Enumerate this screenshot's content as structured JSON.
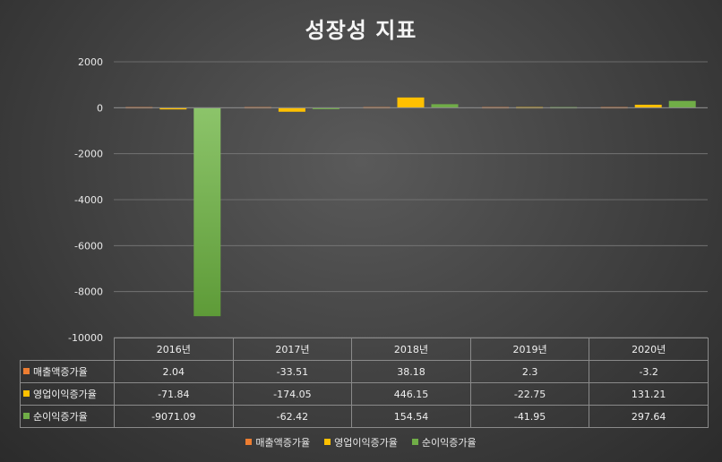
{
  "chart_data": {
    "type": "bar",
    "title": "성장성 지표",
    "categories": [
      "2016년",
      "2017년",
      "2018년",
      "2019년",
      "2020년"
    ],
    "series": [
      {
        "name": "매출액증가율",
        "color": "#ED7D31",
        "values": [
          2.04,
          -33.51,
          38.18,
          2.3,
          -3.2
        ],
        "labels": [
          "2.04",
          "-33.51",
          "38.18",
          "2.3",
          "-3.2"
        ]
      },
      {
        "name": "영업이익증가율",
        "color": "#FFC000",
        "values": [
          -71.84,
          -174.05,
          446.15,
          -22.75,
          131.21
        ],
        "labels": [
          "-71.84",
          "-174.05",
          "446.15",
          "-22.75",
          "131.21"
        ]
      },
      {
        "name": "순이익증가율",
        "color": "#70AD47",
        "values": [
          -9071.09,
          -62.42,
          154.54,
          -41.95,
          297.64
        ],
        "labels": [
          "-9071.09",
          "-62.42",
          "154.54",
          "-41.95",
          "297.64"
        ]
      }
    ],
    "ylim": [
      -10000,
      2000
    ],
    "yticks": [
      2000,
      0,
      -2000,
      -4000,
      -6000,
      -8000,
      -10000
    ],
    "grid": true,
    "legend": "bottom",
    "data_table": true
  }
}
